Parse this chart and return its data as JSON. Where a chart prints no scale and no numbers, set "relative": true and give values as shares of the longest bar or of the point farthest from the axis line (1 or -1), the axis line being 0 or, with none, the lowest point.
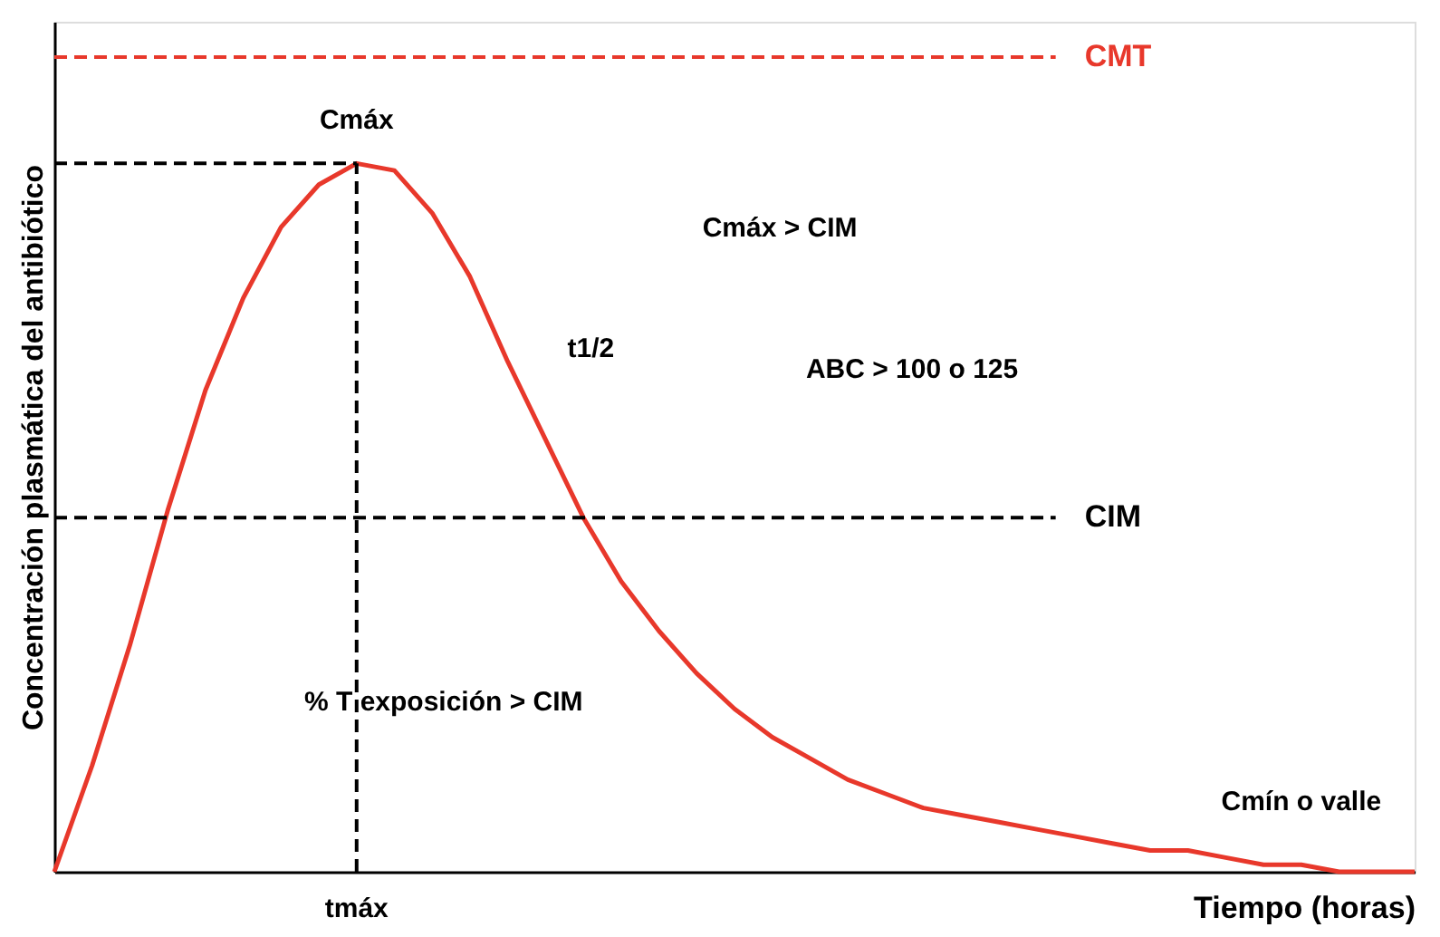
{
  "chart_data": {
    "type": "line",
    "relative": true,
    "xlabel": "Tiempo (horas)",
    "ylabel": "Concentración plasmática del antibiótico",
    "categories": [
      null,
      null,
      null,
      null,
      null,
      null,
      null,
      null,
      null,
      null,
      null,
      null,
      null,
      null,
      null,
      null,
      null,
      null,
      null,
      null,
      null,
      null,
      null,
      null,
      null,
      null,
      null,
      null,
      null,
      null,
      null,
      null,
      null,
      null,
      null,
      null,
      null
    ],
    "values": [
      0.0,
      0.15,
      0.32,
      0.51,
      0.68,
      0.81,
      0.91,
      0.97,
      1.0,
      0.99,
      0.93,
      0.84,
      0.72,
      0.61,
      0.5,
      0.41,
      0.34,
      0.28,
      0.23,
      0.19,
      0.16,
      0.13,
      0.11,
      0.09,
      0.08,
      0.07,
      0.06,
      0.05,
      0.04,
      0.03,
      0.03,
      0.02,
      0.01,
      0.01,
      0.0,
      0.0,
      0.0
    ],
    "color": "#e8382b",
    "marker": "none",
    "line_style": "solid",
    "grid": false,
    "ref_lines": [
      {
        "axis": "y",
        "value": 1.15,
        "label": "CMT",
        "color": "#e8382b",
        "line_style": "dashed"
      },
      {
        "axis": "y",
        "value": 1.0,
        "label": "Cmáx",
        "color": "#000000",
        "line_style": "dashed"
      },
      {
        "axis": "y",
        "value": 0.5,
        "label": "CIM",
        "color": "#000000",
        "line_style": "dashed"
      },
      {
        "axis": "x",
        "label": "tmáx",
        "color": "#000000",
        "line_style": "dashed"
      }
    ],
    "annotations": [
      "Cmáx > CIM",
      "t1/2",
      "ABC > 100 o 125",
      "% T exposición > CIM",
      "Cmín o valle"
    ]
  }
}
